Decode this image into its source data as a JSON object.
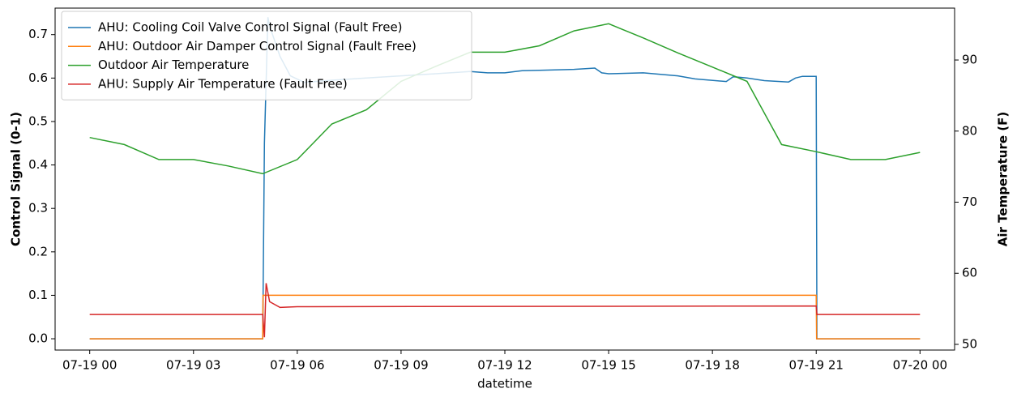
{
  "chart_data": {
    "type": "line",
    "xlabel": "datetime",
    "ylabel": "Control Signal (0-1)",
    "y2label": "Air Temperature (F)",
    "xlim": [
      -1.0,
      25.0
    ],
    "xticks": [
      {
        "value": 0,
        "label": "07-19 00"
      },
      {
        "value": 3,
        "label": "07-19 03"
      },
      {
        "value": 6,
        "label": "07-19 06"
      },
      {
        "value": 9,
        "label": "07-19 09"
      },
      {
        "value": 12,
        "label": "07-19 12"
      },
      {
        "value": 15,
        "label": "07-19 15"
      },
      {
        "value": 18,
        "label": "07-19 18"
      },
      {
        "value": 21,
        "label": "07-19 21"
      },
      {
        "value": 24,
        "label": "07-20 00"
      }
    ],
    "ylim": [
      -0.026,
      0.761
    ],
    "yticks": [
      {
        "value": 0,
        "label": "0.0"
      },
      0.1,
      0.2,
      0.3,
      0.4,
      0.5,
      0.6,
      0.7
    ],
    "y2lim": [
      49.2,
      97.3
    ],
    "y2ticks": [
      50,
      60,
      70,
      80,
      90
    ],
    "legend": "upper left",
    "grid": false,
    "series": [
      {
        "name": "AHU: Cooling Coil Valve Control Signal (Fault Free)",
        "color": "#1f77b4",
        "axis": "y",
        "x": [
          0,
          5.0,
          5.05,
          5.15,
          5.2,
          5.5,
          5.8,
          6.2,
          7,
          8,
          9,
          10,
          11,
          11.5,
          12,
          12.5,
          13,
          14,
          14.6,
          14.8,
          15,
          16,
          17,
          17.5,
          18.4,
          18.6,
          19,
          19.5,
          20.2,
          20.4,
          20.6,
          21.0,
          21.02,
          24
        ],
        "values": [
          0,
          0,
          0.45,
          0.74,
          0.72,
          0.65,
          0.605,
          0.59,
          0.595,
          0.6,
          0.605,
          0.61,
          0.615,
          0.612,
          0.612,
          0.617,
          0.618,
          0.62,
          0.623,
          0.612,
          0.61,
          0.612,
          0.605,
          0.598,
          0.592,
          0.603,
          0.6,
          0.594,
          0.591,
          0.6,
          0.604,
          0.604,
          0,
          0
        ]
      },
      {
        "name": "AHU: Outdoor Air Damper Control Signal (Fault Free)",
        "color": "#ff7f0e",
        "axis": "y",
        "x": [
          0,
          5.0,
          5.01,
          21.0,
          21.01,
          24
        ],
        "values": [
          0,
          0,
          0.1,
          0.1,
          0,
          0
        ]
      },
      {
        "name": "Outdoor Air Temperature",
        "color": "#2ca02c",
        "axis": "y2",
        "x": [
          0,
          1,
          2,
          3,
          4,
          5,
          6,
          7,
          8,
          9,
          10,
          11,
          12,
          13,
          14,
          15,
          16,
          17,
          18,
          19,
          20,
          21,
          22,
          23,
          24
        ],
        "values": [
          79.1,
          78.1,
          76.0,
          76.0,
          75.1,
          74.0,
          76.0,
          81.0,
          83.0,
          87.0,
          89.1,
          91.1,
          91.1,
          92.0,
          94.1,
          95.1,
          93.1,
          91.0,
          89.0,
          87.0,
          78.1,
          77.1,
          76.0,
          76.0,
          77.0
        ]
      },
      {
        "name": "AHU: Supply Air Temperature (Fault Free)",
        "color": "#d62728",
        "axis": "y2",
        "x": [
          0,
          5.0,
          5.05,
          5.1,
          5.2,
          5.5,
          6,
          21.0,
          21.02,
          24
        ],
        "values": [
          54.2,
          54.2,
          51.0,
          58.6,
          56.0,
          55.2,
          55.3,
          55.4,
          54.2,
          54.2
        ]
      }
    ]
  }
}
